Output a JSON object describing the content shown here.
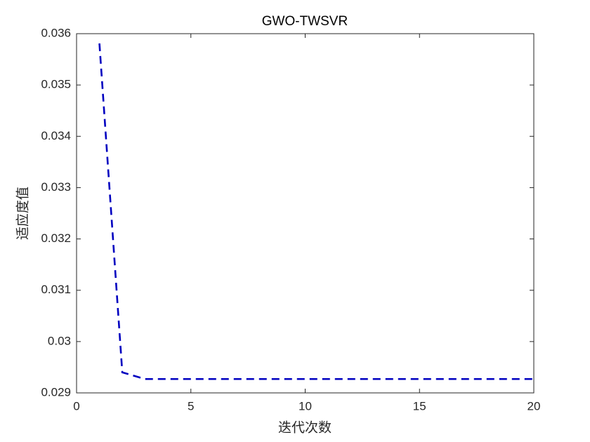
{
  "chart_data": {
    "type": "line",
    "title": "GWO-TWSVR",
    "xlabel": "迭代次数",
    "ylabel": "适应度值",
    "x": [
      1,
      2,
      3,
      4,
      5,
      6,
      7,
      8,
      9,
      10,
      11,
      12,
      13,
      14,
      15,
      16,
      17,
      18,
      19,
      20
    ],
    "series": [
      {
        "color": "#0000c0",
        "linestyle": "dashed",
        "values": [
          0.03581,
          0.0294,
          0.02927,
          0.02927,
          0.02927,
          0.02927,
          0.02927,
          0.02927,
          0.02927,
          0.02927,
          0.02927,
          0.02927,
          0.02927,
          0.02927,
          0.02927,
          0.02927,
          0.02927,
          0.02927,
          0.02927,
          0.02927
        ]
      }
    ],
    "xlim": [
      0,
      20
    ],
    "xticks": [
      0,
      5,
      10,
      15,
      20
    ],
    "ylim": [
      0.029,
      0.036
    ],
    "yticks": [
      0.029,
      0.03,
      0.031,
      0.032,
      0.033,
      0.034,
      0.035,
      0.036
    ],
    "grid": false
  }
}
